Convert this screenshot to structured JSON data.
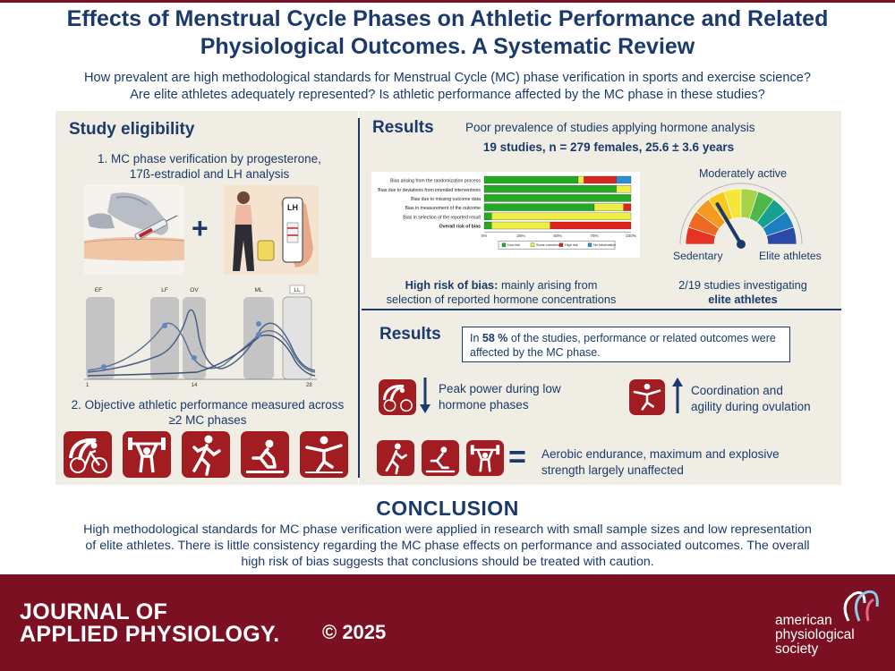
{
  "header": {
    "title_line1": "Effects of Menstrual Cycle Phases on Athletic Performance and Related",
    "title_line2": "Physiological Outcomes. A Systematic Review",
    "question_line1": "How prevalent are high methodological standards for Menstrual Cycle (MC) phase verification in sports and exercise science?",
    "question_line2": "Are elite athletes adequately represented? Is athletic performance affected by the MC phase in these studies?"
  },
  "eligibility": {
    "heading": "Study eligibility",
    "item1_line1": "1.   MC phase verification by progesterone,",
    "item1_line2": "17ß-estradiol and LH analysis",
    "plus": "+",
    "lh_test_label": "LH",
    "item2_line1": "2. Objective athletic performance measured across",
    "item2_line2": "≥2 MC phases",
    "cycle_phases": [
      "EF",
      "LF",
      "OV",
      "ML",
      "LL"
    ],
    "cycle_ticks": [
      "1",
      "14",
      "28"
    ],
    "performance_icons": [
      "cycling-icon",
      "weightlifting-icon",
      "running-icon",
      "sprint-start-icon",
      "balance-icon"
    ]
  },
  "results_top": {
    "heading": "Results",
    "prevalence": "Poor prevalence of studies applying hormone analysis",
    "sample": "19 studies, n = 279 females, 25.6 ± 3.6 years",
    "bias_domains": [
      "Bias arising from the randomization process",
      "Bias due to deviations from intended interventions",
      "Bias due to missing outcome data",
      "Bias in measurement of the outcome",
      "Bias in selection of the reported result",
      "Overall risk of bias"
    ],
    "bias_axis_ticks": [
      "0%",
      "25%",
      "50%",
      "75%",
      "100%"
    ],
    "bias_legend": [
      "Low risk",
      "Some concerns",
      "High risk",
      "No information"
    ],
    "bias_colors": [
      "#22aa22",
      "#eeee44",
      "#dd2222",
      "#2b8fd6"
    ],
    "bias_fraction": [
      [
        0.64,
        0.04,
        0.22,
        0.1
      ],
      [
        0.9,
        0.1,
        0.0,
        0.0
      ],
      [
        1.0,
        0.0,
        0.0,
        0.0
      ],
      [
        0.75,
        0.2,
        0.05,
        0.0
      ],
      [
        0.05,
        0.95,
        0.0,
        0.0
      ],
      [
        0.05,
        0.4,
        0.55,
        0.0
      ]
    ],
    "bias_highlight": "High risk of bias:",
    "bias_rest": " mainly arising from",
    "bias_line2": "selection of reported hormone concentrations",
    "gauge_top_label": "Moderately active",
    "gauge_left_label": "Sedentary",
    "gauge_right_label": "Elite athletes",
    "gauge_level": 0.33,
    "elite_line1": "2/19 studies investigating",
    "elite_line2": "elite athletes"
  },
  "results_bottom": {
    "heading": "Results",
    "box_pre": "In ",
    "box_percent": "58 %",
    "box_post": " of the studies, performance or related outcomes were",
    "box_line2": "affected by the MC phase.",
    "finding1_line1": "Peak power during low",
    "finding1_line2": "hormone phases",
    "finding2_line1": "Coordination and",
    "finding2_line2": "agility during ovulation",
    "equals": "=",
    "finding3_line1": "Aerobic endurance, maximum and explosive",
    "finding3_line2": "strength largely unaffected"
  },
  "conclusion": {
    "heading": "CONCLUSION",
    "line1": "High methodological standards for MC phase verification were applied in research with small sample sizes and low representation",
    "line2": "of elite athletes. There is little consistency regarding the MC phase effects on performance and associated outcomes. The overall",
    "line3": "high risk of bias suggests that conclusions should be treated with caution."
  },
  "footer": {
    "journal_line1": "JOURNAL OF",
    "journal_line2": "APPLIED PHYSIOLOGY.",
    "copyright": "© 2025",
    "society_line1": "american",
    "society_line2": "physiological",
    "society_line3": "society"
  }
}
